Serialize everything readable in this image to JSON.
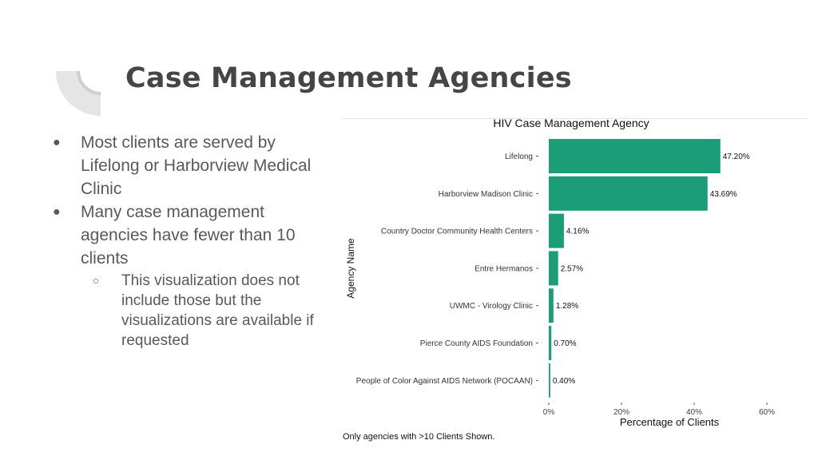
{
  "slide": {
    "title": "Case Management Agencies",
    "bullets": [
      {
        "text": "Most clients are served by Lifelong or Harborview Medical Clinic"
      },
      {
        "text": "Many case management agencies have fewer than 10 clients"
      }
    ],
    "sub_bullets": [
      {
        "text": "This visualization does not include those but the visualizations are available if requested"
      }
    ],
    "caption": "Only agencies with >10 Clients Shown.",
    "accent_color": "#1b9e77"
  },
  "chart_data": {
    "type": "bar",
    "orientation": "horizontal",
    "title": "HIV Case Management Agency",
    "xlabel": "Percentage of Clients",
    "ylabel": "Agency Name",
    "categories": [
      "Lifelong",
      "Harborview Madison Clinic",
      "Country Doctor Community Health Centers",
      "Entre Hermanos",
      "UWMC - Virology Clinic",
      "Pierce County AIDS Foundation",
      "People of Color Against AIDS Network (POCAAN)"
    ],
    "values": [
      47.2,
      43.69,
      4.16,
      2.57,
      1.28,
      0.7,
      0.4
    ],
    "data_labels": [
      "47.20%",
      "43.69%",
      "4.16%",
      "2.57%",
      "1.28%",
      "0.70%",
      "0.40%"
    ],
    "xlim": [
      0,
      60
    ],
    "x_ticks": [
      0,
      20,
      40,
      60
    ],
    "x_tick_labels": [
      "0%",
      "20%",
      "40%",
      "60%"
    ],
    "bar_color": "#1b9e77",
    "grid": false
  }
}
